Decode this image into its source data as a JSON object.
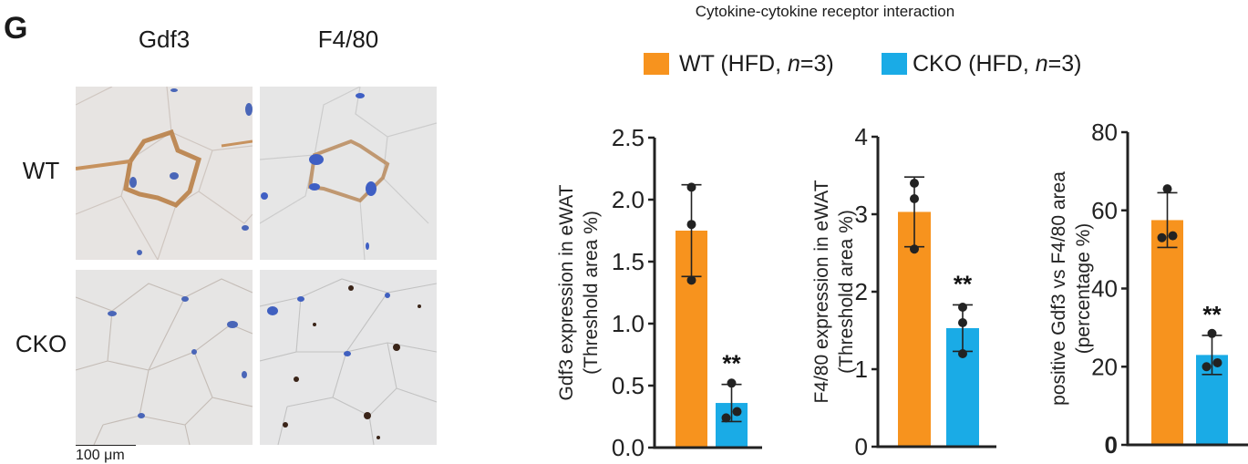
{
  "panel_letter": "G",
  "micrographs": {
    "columns": [
      "Gdf3",
      "F4/80"
    ],
    "rows": [
      "WT",
      "CKO"
    ],
    "scale_bar": "100 μm"
  },
  "colors": {
    "wt": "#F7931E",
    "cko": "#1AABE6",
    "points": "#222222",
    "axis": "#222222"
  },
  "chart_title": "Cytokine-cytokine receptor interaction",
  "legend": [
    {
      "label": "WT (HFD, ",
      "n": "n",
      "rest": "=3)",
      "color": "#F7931E"
    },
    {
      "label": "CKO (HFD, ",
      "n": "n",
      "rest": "=3)",
      "color": "#1AABE6"
    }
  ],
  "chart_data": [
    {
      "type": "bar",
      "ylabel": [
        "Gdf3 expression in eWAT",
        "(Threshold area %)"
      ],
      "ylim": [
        0,
        2.5
      ],
      "yticks": [
        "0.0",
        "0.5",
        "1.0",
        "1.5",
        "2.0",
        "2.5"
      ],
      "ytick_values": [
        0,
        0.5,
        1.0,
        1.5,
        2.0,
        2.5
      ],
      "categories": [
        "WT (HFD, n=3)",
        "CKO (HFD, n=3)"
      ],
      "values": [
        1.75,
        0.36
      ],
      "error": [
        [
          1.38,
          2.12
        ],
        [
          0.21,
          0.51
        ]
      ],
      "points": [
        [
          2.1,
          1.8,
          1.35
        ],
        [
          0.52,
          0.24,
          0.29
        ]
      ],
      "significance": [
        "",
        "**"
      ]
    },
    {
      "type": "bar",
      "ylabel": [
        "F4/80 expression in eWAT",
        "(Threshold area %)"
      ],
      "ylim": [
        0,
        4
      ],
      "yticks": [
        "0",
        "1",
        "2",
        "3",
        "4"
      ],
      "ytick_values": [
        0,
        1,
        2,
        3,
        4
      ],
      "categories": [
        "WT (HFD, n=3)",
        "CKO (HFD, n=3)"
      ],
      "values": [
        3.03,
        1.53
      ],
      "error": [
        [
          2.58,
          3.48
        ],
        [
          1.23,
          1.83
        ]
      ],
      "points": [
        [
          3.4,
          3.2,
          2.55
        ],
        [
          1.8,
          1.6,
          1.2
        ]
      ],
      "significance": [
        "",
        "**"
      ]
    },
    {
      "type": "bar",
      "ylabel": [
        "positive Gdf3 vs F4/80 area",
        "(percentage %)"
      ],
      "ylim": [
        0,
        80
      ],
      "yticks": [
        "0",
        "20",
        "40",
        "60",
        "80"
      ],
      "ytick_values": [
        0,
        20,
        40,
        60,
        80
      ],
      "categories": [
        "WT (HFD, n=3)",
        "CKO (HFD, n=3)"
      ],
      "values": [
        57.5,
        23
      ],
      "error": [
        [
          50.5,
          64.5
        ],
        [
          18,
          28
        ]
      ],
      "points": [
        [
          65.5,
          53,
          53.5
        ],
        [
          28.5,
          20,
          21
        ]
      ],
      "significance": [
        "",
        "**"
      ]
    }
  ]
}
